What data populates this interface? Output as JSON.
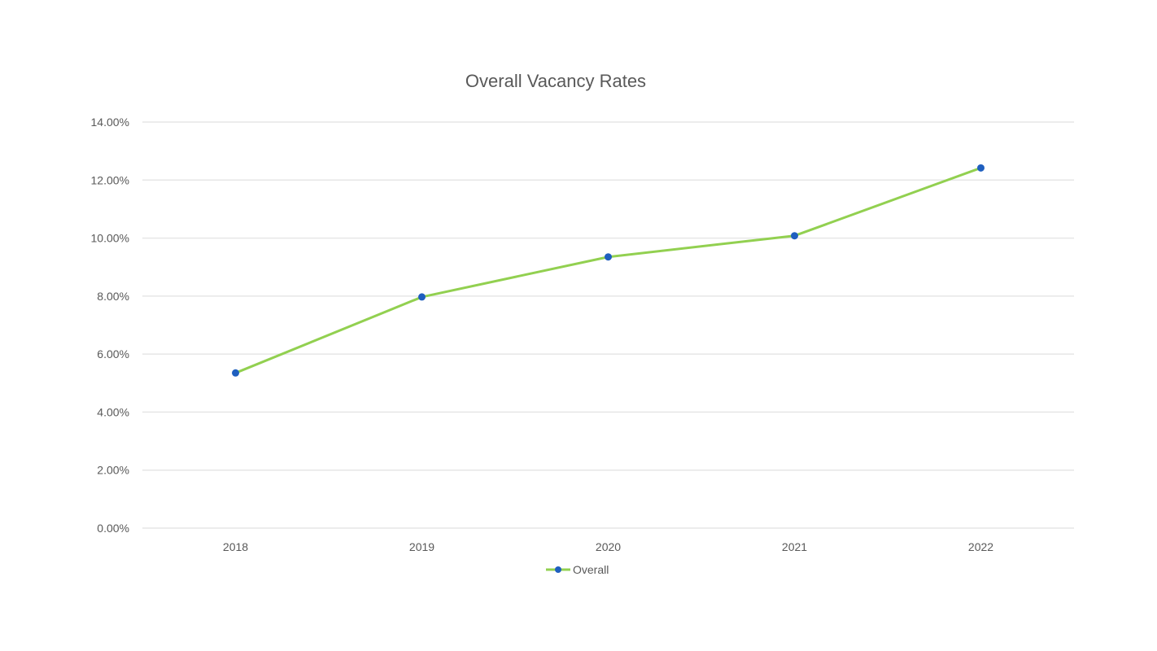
{
  "chart_data": {
    "type": "line",
    "title": "Overall Vacancy Rates",
    "xlabel": "",
    "ylabel": "",
    "categories": [
      "2018",
      "2019",
      "2020",
      "2021",
      "2022"
    ],
    "series": [
      {
        "name": "Overall",
        "values": [
          5.35,
          7.97,
          9.35,
          10.08,
          12.42
        ],
        "color": "#92D050",
        "marker_color": "#1F5FBF"
      }
    ],
    "ylim": [
      0,
      14
    ],
    "y_ticks": [
      "0.00%",
      "2.00%",
      "4.00%",
      "6.00%",
      "8.00%",
      "10.00%",
      "12.00%",
      "14.00%"
    ],
    "grid": true,
    "legend_position": "bottom",
    "gridline_color": "#E6E6E6"
  }
}
